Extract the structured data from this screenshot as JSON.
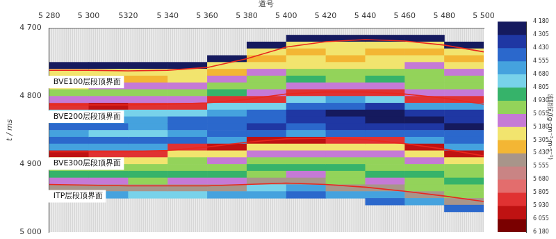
{
  "chart_data": {
    "type": "heatmap",
    "xlabel": "道号",
    "ylabel": "t / ms",
    "xlim": [
      5280,
      5500
    ],
    "xticks": [
      {
        "value": 5280,
        "label": "5 280"
      },
      {
        "value": 5300,
        "label": "5 300"
      },
      5320,
      {
        "value": 5340,
        "label": "5 340"
      },
      {
        "value": 5360,
        "label": "5 360"
      },
      {
        "value": 5380,
        "label": "5 380"
      },
      {
        "value": 5400,
        "label": "5 400"
      },
      {
        "value": 5420,
        "label": "5 420"
      },
      {
        "value": 5440,
        "label": "5 440"
      },
      {
        "value": 5460,
        "label": "5 460"
      },
      {
        "value": 5480,
        "label": "5 480"
      },
      {
        "value": 5500,
        "label": "5 500"
      }
    ],
    "ylim": [
      4700,
      5000
    ],
    "yticks": [
      {
        "value": 4700,
        "label": "4 700"
      },
      {
        "value": 4800,
        "label": "4 800"
      },
      {
        "value": 4900,
        "label": "4 900"
      },
      {
        "value": 5000,
        "label": "5 000"
      }
    ],
    "grid": false,
    "cells": {
      "x_edges": [
        5280,
        5300,
        5320,
        5340,
        5360,
        5380,
        5400,
        5420,
        5440,
        5460,
        5480,
        5500
      ],
      "y_edges": [
        4700,
        4710,
        4720,
        4730,
        4740,
        4750,
        4760,
        4770,
        4780,
        4790,
        4800,
        4810,
        4820,
        4830,
        4840,
        4850,
        4860,
        4870,
        4880,
        4890,
        4900,
        4910,
        4920,
        4930,
        4940,
        4950,
        4960,
        4970,
        4980,
        4990,
        5000
      ],
      "values": [
        [
          null,
          null,
          null,
          null,
          null,
          4250,
          5250,
          5300,
          5180,
          4950,
          5100,
          5900,
          4700,
          4600,
          4550,
          4650,
          4500,
          4600,
          5950,
          5250,
          5000,
          4900,
          5080,
          5500,
          4650,
          null,
          null,
          null,
          null,
          null
        ],
        [
          null,
          null,
          null,
          null,
          null,
          4230,
          5280,
          5320,
          5120,
          4980,
          5060,
          5950,
          4720,
          4580,
          4520,
          4680,
          4480,
          4620,
          5920,
          5300,
          5020,
          4870,
          5100,
          5480,
          4620,
          null,
          null,
          null,
          null,
          null
        ],
        [
          null,
          null,
          null,
          null,
          null,
          4210,
          5260,
          5350,
          5150,
          5000,
          5090,
          5920,
          4680,
          4560,
          4600,
          4700,
          4520,
          4580,
          5900,
          5280,
          4980,
          4920,
          5050,
          5520,
          4700,
          null,
          null,
          null,
          null,
          null
        ],
        [
          null,
          null,
          null,
          null,
          null,
          4220,
          5300,
          5250,
          5100,
          4950,
          5150,
          5900,
          4700,
          4520,
          4480,
          4620,
          4550,
          5880,
          5250,
          5050,
          4950,
          4900,
          5080,
          5500,
          4680,
          null,
          null,
          null,
          null,
          null
        ],
        [
          null,
          null,
          null,
          null,
          4250,
          5280,
          5350,
          5150,
          5000,
          4920,
          5900,
          4750,
          4600,
          4500,
          4550,
          4450,
          4600,
          5950,
          5300,
          5100,
          4950,
          4880,
          5100,
          5520,
          4650,
          null,
          null,
          null,
          null,
          null
        ],
        [
          null,
          null,
          4200,
          5200,
          5350,
          5250,
          5100,
          4950,
          5000,
          5060,
          5900,
          4720,
          4550,
          4480,
          4420,
          4500,
          5950,
          5300,
          5150,
          5000,
          4900,
          5050,
          5500,
          4700,
          4600,
          null,
          null,
          null,
          null,
          null
        ],
        [
          null,
          4190,
          5250,
          5330,
          5200,
          5300,
          5050,
          4900,
          5100,
          5900,
          4700,
          4500,
          4400,
          4350,
          4450,
          4600,
          5950,
          5280,
          5100,
          4950,
          4850,
          5080,
          5500,
          4650,
          4550,
          null,
          null,
          null,
          null,
          null
        ],
        [
          null,
          4200,
          5300,
          5250,
          5350,
          5180,
          5000,
          4950,
          5120,
          5900,
          4650,
          4450,
          4300,
          4350,
          4400,
          4550,
          5900,
          5300,
          5150,
          5000,
          4900,
          5050,
          4950,
          5500,
          4600,
          null,
          null,
          null,
          null,
          null
        ],
        [
          null,
          4220,
          5280,
          5350,
          5300,
          5200,
          5050,
          4900,
          5100,
          5900,
          4680,
          4400,
          4250,
          4300,
          4350,
          4500,
          5900,
          5250,
          5100,
          5000,
          4950,
          4900,
          5080,
          5500,
          4600,
          4550,
          null,
          null,
          null,
          null
        ],
        [
          null,
          4250,
          5300,
          5350,
          5250,
          5150,
          5000,
          4950,
          5050,
          5100,
          5900,
          4600,
          4350,
          4300,
          4400,
          4500,
          4600,
          5950,
          5300,
          5100,
          5000,
          4900,
          5050,
          4950,
          5500,
          4600,
          null,
          null,
          null,
          null
        ],
        [
          null,
          null,
          4200,
          5300,
          5350,
          5200,
          5100,
          4950,
          5000,
          5100,
          5900,
          4650,
          4400,
          4350,
          4300,
          4450,
          4550,
          4650,
          5950,
          5250,
          5050,
          4950,
          4900,
          5050,
          4950,
          5550,
          4500,
          null,
          null,
          null
        ]
      ]
    },
    "colorbar": {
      "label": "波阻抗/(g·cm⁻³·m·s⁻¹)",
      "range": [
        4180,
        6180
      ],
      "ticks": [
        {
          "value": 4180,
          "label": "4 180"
        },
        {
          "value": 4305,
          "label": "4 305"
        },
        {
          "value": 4430,
          "label": "4 430"
        },
        {
          "value": 4555,
          "label": "4 555"
        },
        {
          "value": 4680,
          "label": "4 680"
        },
        {
          "value": 4805,
          "label": "4 805"
        },
        {
          "value": 4930,
          "label": "4 930"
        },
        {
          "value": 5055,
          "label": "5 055"
        },
        {
          "value": 5180,
          "label": "5 180"
        },
        {
          "value": 5305,
          "label": "5 305"
        },
        {
          "value": 5430,
          "label": "5 430"
        },
        {
          "value": 5555,
          "label": "5 555"
        },
        {
          "value": 5680,
          "label": "5 680"
        },
        {
          "value": 5805,
          "label": "5 805"
        },
        {
          "value": 5930,
          "label": "5 930"
        },
        {
          "value": 6055,
          "label": "6 055"
        },
        {
          "value": 6180,
          "label": "6 180"
        }
      ],
      "colors": [
        "#151a5e",
        "#1f37a3",
        "#2b68cc",
        "#45a2de",
        "#78d2ea",
        "#36b36a",
        "#93d35a",
        "#c57ad6",
        "#f2e46e",
        "#f3b634",
        "#a8958a",
        "#c98484",
        "#e36d6d",
        "#e03232",
        "#bf1212",
        "#7a0000"
      ]
    },
    "x": [
      5280,
      5300,
      5320,
      5340,
      5360,
      5380,
      5400,
      5420,
      5440,
      5460,
      5480,
      5500
    ],
    "series": [
      {
        "name": "BVE100层段顶界面",
        "color": "#e8281e",
        "values": [
          4762,
          4762,
          4763,
          4762,
          4758,
          4745,
          4728,
          4720,
          4717,
          4719,
          4725,
          4735
        ]
      },
      {
        "name": "BVE200层段顶界面",
        "color": "#e8281e",
        "values": [
          4813,
          4813,
          4813,
          4812,
          4810,
          4805,
          4797,
          4794,
          4794,
          4797,
          4803,
          4812
        ]
      },
      {
        "name": "BVE300层段顶界面",
        "color": "#e8281e",
        "values": [
          4882,
          4882,
          4882,
          4880,
          4875,
          4868,
          4863,
          4862,
          4864,
          4870,
          4878,
          4888
        ]
      },
      {
        "name": "ITP层段顶界面",
        "color": "#e8281e",
        "values": [
          4930,
          4931,
          4932,
          4932,
          4932,
          4930,
          4928,
          4930,
          4934,
          4940,
          4947,
          4955
        ]
      }
    ]
  }
}
